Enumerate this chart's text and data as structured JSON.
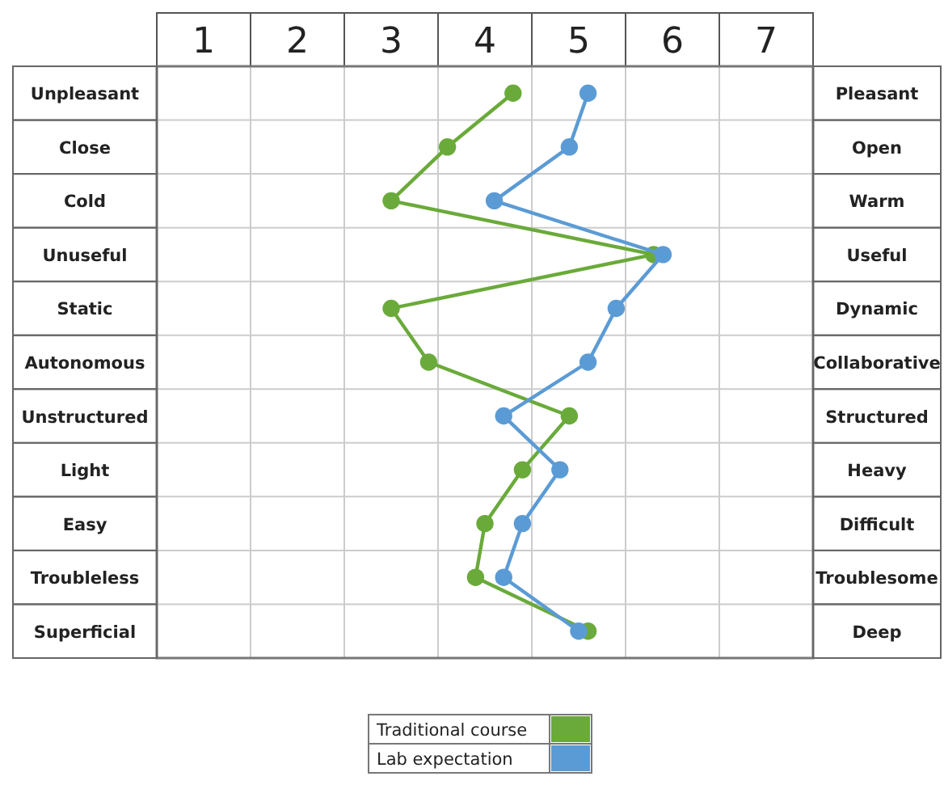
{
  "chart_data": {
    "type": "line",
    "orientation": "horizontal",
    "categories": [
      "Unpleasant",
      "Close",
      "Cold",
      "Unuseful",
      "Static",
      "Autonomous",
      "Unstructured",
      "Light",
      "Easy",
      "Troubleless",
      "Superficial"
    ],
    "y2_categories": [
      "Pleasant",
      "Open",
      "Warm",
      "Useful",
      "Dynamic",
      "Collaborative",
      "Structured",
      "Heavy",
      "Difficult",
      "Troublesome",
      "Deep"
    ],
    "series": [
      {
        "name": "Traditional course",
        "color": "#6aaa3a",
        "values": [
          4.3,
          3.6,
          3.0,
          5.8,
          3.0,
          3.4,
          4.9,
          4.4,
          4.0,
          3.9,
          5.1
        ]
      },
      {
        "name": "Lab expectation",
        "color": "#5b9bd5",
        "values": [
          5.1,
          4.9,
          4.1,
          5.9,
          5.4,
          5.1,
          4.2,
          4.8,
          4.4,
          4.2,
          5.0
        ]
      }
    ],
    "xlim": [
      0.5,
      7.5
    ],
    "xticks": [
      1,
      2,
      3,
      4,
      5,
      6,
      7
    ],
    "grid": true,
    "marker": "circle",
    "legend": "bottom"
  }
}
